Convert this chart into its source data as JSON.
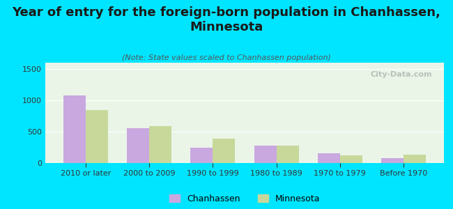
{
  "categories": [
    "2010 or later",
    "2000 to 2009",
    "1990 to 1999",
    "1980 to 1989",
    "1970 to 1979",
    "Before 1970"
  ],
  "chanhassen": [
    1080,
    560,
    240,
    280,
    160,
    80
  ],
  "minnesota": [
    850,
    590,
    390,
    280,
    120,
    130
  ],
  "chanhassen_color": "#c9a8e0",
  "minnesota_color": "#c8d89a",
  "title": "Year of entry for the foreign-born population in Chanhassen,\nMinnesota",
  "subtitle": "(Note: State values scaled to Chanhassen population)",
  "ylim": [
    0,
    1600
  ],
  "yticks": [
    0,
    500,
    1000,
    1500
  ],
  "bg_outer": "#00e5ff",
  "bg_plot": "#eaf5e8",
  "watermark": "City-Data.com",
  "legend_chanhassen": "Chanhassen",
  "legend_minnesota": "Minnesota",
  "bar_width": 0.35,
  "title_fontsize": 13,
  "subtitle_fontsize": 8,
  "tick_fontsize": 8,
  "legend_fontsize": 9
}
